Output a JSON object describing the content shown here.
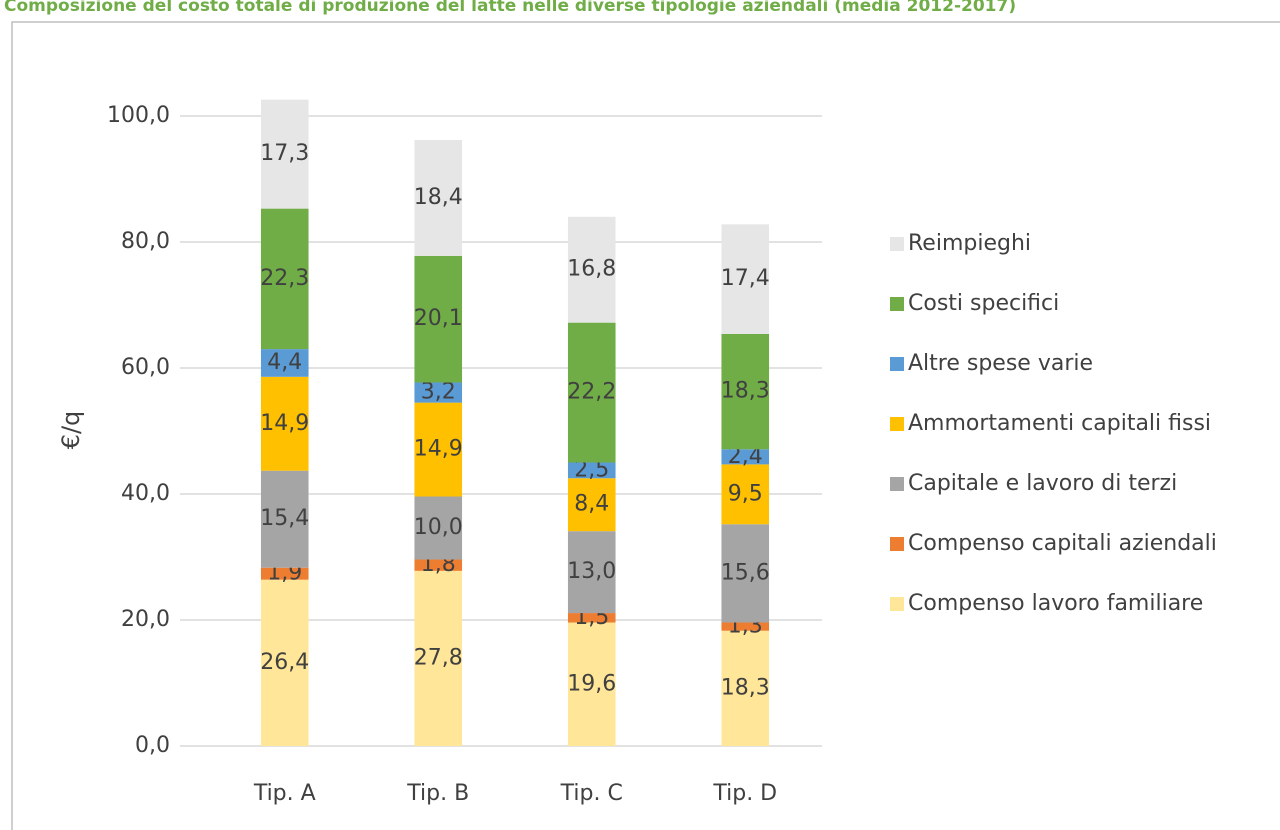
{
  "chart_data": {
    "type": "stacked-bar",
    "title": "Composizione del costo totale di produzione del latte nelle diverse tipologie aziendali (media 2012-2017)",
    "y_label": "€/q",
    "categories": [
      "Tip. A",
      "Tip. B",
      "Tip. C",
      "Tip. D"
    ],
    "ylim": [
      0,
      100
    ],
    "yticks": [
      {
        "value": 0,
        "label": "0,0"
      },
      {
        "value": 20,
        "label": "20,0"
      },
      {
        "value": 40,
        "label": "40,0"
      },
      {
        "value": 60,
        "label": "60,0"
      },
      {
        "value": 80,
        "label": "80,0"
      },
      {
        "value": 100,
        "label": "100,0"
      }
    ],
    "grid": true,
    "legend": "right",
    "series": [
      {
        "name": "Compenso lavoro familiare",
        "color": "#ffe699",
        "values": [
          26.4,
          27.8,
          19.6,
          18.3
        ],
        "value_labels": [
          "26,4",
          "27,8",
          "19,6",
          "18,3"
        ]
      },
      {
        "name": "Compenso capitali aziendali",
        "color": "#ed7d31",
        "values": [
          1.9,
          1.8,
          1.5,
          1.3
        ],
        "value_labels": [
          "1,9",
          "1,8",
          "1,5",
          "1,3"
        ]
      },
      {
        "name": "Capitale e lavoro di terzi",
        "color": "#a5a5a5",
        "values": [
          15.4,
          10.0,
          13.0,
          15.6
        ],
        "value_labels": [
          "15,4",
          "10,0",
          "13,0",
          "15,6"
        ]
      },
      {
        "name": "Ammortamenti capitali fissi",
        "color": "#ffc000",
        "values": [
          14.9,
          14.9,
          8.4,
          9.5
        ],
        "value_labels": [
          "14,9",
          "14,9",
          "8,4",
          "9,5"
        ]
      },
      {
        "name": "Altre spese varie",
        "color": "#5b9bd5",
        "values": [
          4.4,
          3.2,
          2.5,
          2.4
        ],
        "value_labels": [
          "4,4",
          "3,2",
          "2,5",
          "2,4"
        ]
      },
      {
        "name": "Costi specifici",
        "color": "#70ad47",
        "values": [
          22.3,
          20.1,
          22.2,
          18.3
        ],
        "value_labels": [
          "22,3",
          "20,1",
          "22,2",
          "18,3"
        ]
      },
      {
        "name": "Reimpieghi",
        "color": "#e7e6e6",
        "values": [
          17.3,
          18.4,
          16.8,
          17.4
        ],
        "value_labels": [
          "17,3",
          "18,4",
          "16,8",
          "17,4"
        ]
      }
    ]
  }
}
